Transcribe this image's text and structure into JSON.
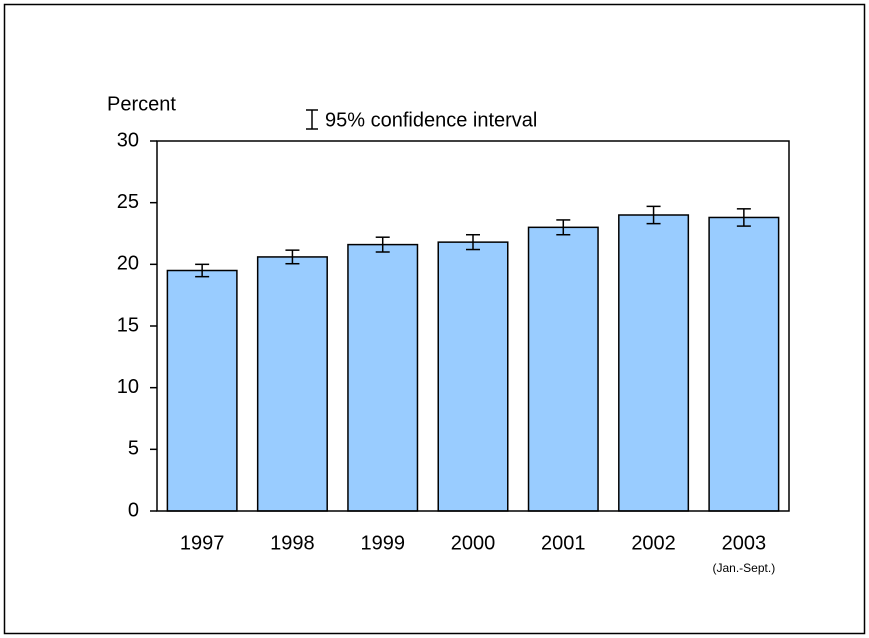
{
  "chart_data": {
    "type": "bar",
    "y_label": "Percent",
    "legend_label": "95% confidence interval",
    "categories": [
      "1997",
      "1998",
      "1999",
      "2000",
      "2001",
      "2002",
      "2003"
    ],
    "category_note": "(Jan.-Sept.)",
    "values": [
      19.5,
      20.6,
      21.6,
      21.8,
      23.0,
      24.0,
      23.8
    ],
    "errors": [
      0.5,
      0.55,
      0.6,
      0.6,
      0.6,
      0.7,
      0.7
    ],
    "color": "#99ccff",
    "ylim": [
      0,
      30
    ],
    "yticks": [
      0,
      5,
      10,
      15,
      20,
      25,
      30
    ]
  }
}
